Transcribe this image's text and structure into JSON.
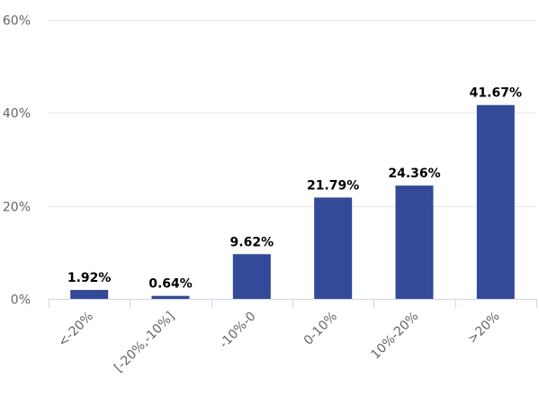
{
  "chart_data": {
    "type": "bar",
    "categories": [
      "<-20%",
      "[-20%,-10%]",
      "-10%-0",
      "0-10%",
      "10%-20%",
      ">20%"
    ],
    "values": [
      1.92,
      0.64,
      9.62,
      21.79,
      24.36,
      41.67
    ],
    "data_labels": [
      "1.92%",
      "0.64%",
      "9.62%",
      "21.79%",
      "24.36%",
      "41.67%"
    ],
    "y_ticks": [
      0,
      20,
      40,
      60
    ],
    "y_tick_labels": [
      "0%",
      "20%",
      "40%",
      "60%"
    ],
    "ylim": [
      0,
      60
    ],
    "grid": true,
    "bar_color": "#334a99",
    "title": "",
    "xlabel": "",
    "ylabel": ""
  }
}
